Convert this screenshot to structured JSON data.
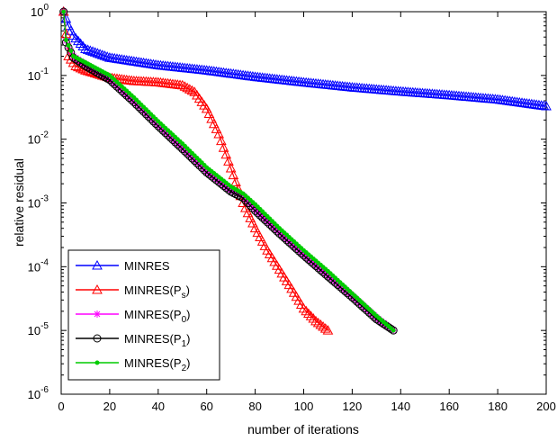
{
  "chart_data": {
    "type": "line",
    "xlabel": "number of iterations",
    "ylabel": "relative residual",
    "xlim": [
      0,
      200
    ],
    "ylim_log10": [
      -6,
      0
    ],
    "y_scale": "log",
    "grid": false,
    "legend_placement": "bottom-left",
    "x_ticks": [
      "0",
      "20",
      "40",
      "60",
      "80",
      "100",
      "120",
      "140",
      "160",
      "180",
      "200"
    ],
    "y_ticks": [
      {
        "base": "10",
        "exp": "0"
      },
      {
        "base": "10",
        "exp": "-1"
      },
      {
        "base": "10",
        "exp": "-2"
      },
      {
        "base": "10",
        "exp": "-3"
      },
      {
        "base": "10",
        "exp": "-4"
      },
      {
        "base": "10",
        "exp": "-5"
      },
      {
        "base": "10",
        "exp": "-6"
      }
    ],
    "series": [
      {
        "name": "MINRES",
        "label_main": "MINRES",
        "label_sub": "",
        "color": "#0000ff",
        "marker": "triangle",
        "points": [
          [
            1,
            1.0
          ],
          [
            3,
            0.6
          ],
          [
            5,
            0.42
          ],
          [
            10,
            0.26
          ],
          [
            20,
            0.19
          ],
          [
            40,
            0.145
          ],
          [
            60,
            0.12
          ],
          [
            80,
            0.095
          ],
          [
            100,
            0.078
          ],
          [
            120,
            0.065
          ],
          [
            140,
            0.056
          ],
          [
            160,
            0.049
          ],
          [
            180,
            0.042
          ],
          [
            200,
            0.033
          ]
        ]
      },
      {
        "name": "MINRES(Ps)",
        "label_main": "MINRES(P",
        "label_sub": "s",
        "color": "#ff0000",
        "marker": "triangle",
        "points": [
          [
            1,
            1.0
          ],
          [
            3,
            0.2
          ],
          [
            6,
            0.14
          ],
          [
            10,
            0.12
          ],
          [
            20,
            0.092
          ],
          [
            30,
            0.082
          ],
          [
            40,
            0.078
          ],
          [
            50,
            0.07
          ],
          [
            55,
            0.055
          ],
          [
            60,
            0.03
          ],
          [
            65,
            0.012
          ],
          [
            70,
            0.0035
          ],
          [
            75,
            0.001
          ],
          [
            80,
            0.0004
          ],
          [
            85,
            0.00018
          ],
          [
            90,
            9e-05
          ],
          [
            95,
            4.5e-05
          ],
          [
            100,
            2.2e-05
          ],
          [
            105,
            1.4e-05
          ],
          [
            110,
            1e-05
          ]
        ]
      },
      {
        "name": "MINRES(P0)",
        "label_main": "MINRES(P",
        "label_sub": "0",
        "color": "#ff00ff",
        "marker": "star",
        "points": [
          [
            1,
            1.0
          ],
          [
            2,
            0.35
          ],
          [
            5,
            0.2
          ],
          [
            10,
            0.15
          ],
          [
            20,
            0.09
          ],
          [
            30,
            0.04
          ],
          [
            40,
            0.017
          ],
          [
            50,
            0.0075
          ],
          [
            60,
            0.0032
          ],
          [
            70,
            0.0016
          ],
          [
            75,
            0.0013
          ],
          [
            80,
            0.0008
          ],
          [
            90,
            0.00035
          ],
          [
            100,
            0.00016
          ],
          [
            110,
            7.5e-05
          ],
          [
            120,
            3.5e-05
          ],
          [
            130,
            1.6e-05
          ],
          [
            137,
            1e-05
          ]
        ]
      },
      {
        "name": "MINRES(P1)",
        "label_main": "MINRES(P",
        "label_sub": "1",
        "color": "#000000",
        "marker": "circle",
        "points": [
          [
            1,
            1.0
          ],
          [
            2,
            0.33
          ],
          [
            5,
            0.19
          ],
          [
            10,
            0.14
          ],
          [
            20,
            0.085
          ],
          [
            30,
            0.038
          ],
          [
            40,
            0.016
          ],
          [
            50,
            0.007
          ],
          [
            60,
            0.003
          ],
          [
            70,
            0.0015
          ],
          [
            75,
            0.0012
          ],
          [
            80,
            0.00075
          ],
          [
            90,
            0.00033
          ],
          [
            100,
            0.00015
          ],
          [
            110,
            7e-05
          ],
          [
            120,
            3.3e-05
          ],
          [
            130,
            1.5e-05
          ],
          [
            137,
            1e-05
          ]
        ]
      },
      {
        "name": "MINRES(P2)",
        "label_main": "MINRES(P",
        "label_sub": "2",
        "color": "#00cc00",
        "marker": "dot",
        "points": [
          [
            1,
            1.0
          ],
          [
            2,
            0.36
          ],
          [
            5,
            0.2
          ],
          [
            10,
            0.16
          ],
          [
            20,
            0.1
          ],
          [
            30,
            0.045
          ],
          [
            40,
            0.019
          ],
          [
            50,
            0.0085
          ],
          [
            60,
            0.0036
          ],
          [
            70,
            0.0018
          ],
          [
            75,
            0.0014
          ],
          [
            80,
            0.00095
          ],
          [
            90,
            0.0004
          ],
          [
            100,
            0.00018
          ],
          [
            110,
            8.5e-05
          ],
          [
            120,
            3.8e-05
          ],
          [
            130,
            1.7e-05
          ],
          [
            137,
            1e-05
          ]
        ]
      }
    ]
  }
}
